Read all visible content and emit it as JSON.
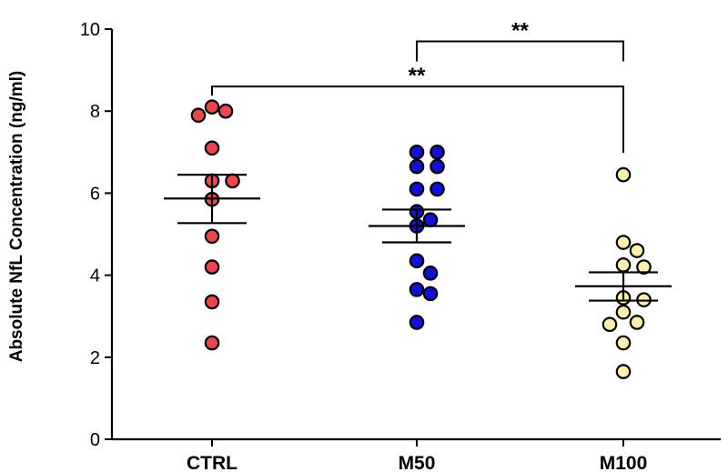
{
  "chart_data": {
    "type": "scatter",
    "title": "",
    "xlabel": "",
    "ylabel": "Absolute NfL Concentration (ng/ml)",
    "ylim": [
      0,
      10
    ],
    "yticks": [
      0,
      2,
      4,
      6,
      8,
      10
    ],
    "categories": [
      "CTRL",
      "M50",
      "M100"
    ],
    "series": [
      {
        "name": "CTRL",
        "color": "#e8474b",
        "values": [
          8.1,
          8.0,
          7.9,
          7.1,
          6.3,
          6.3,
          5.85,
          4.95,
          4.2,
          3.35,
          2.35
        ],
        "mean": 5.87,
        "sem_low": 5.27,
        "sem_high": 6.45
      },
      {
        "name": "M50",
        "color": "#1010d6",
        "values": [
          7.0,
          7.0,
          6.65,
          6.65,
          6.1,
          6.1,
          5.55,
          5.35,
          5.2,
          4.35,
          4.05,
          3.65,
          3.55,
          2.85
        ],
        "mean": 5.2,
        "sem_low": 4.8,
        "sem_high": 5.6
      },
      {
        "name": "M100",
        "color": "#fbf0b0",
        "values": [
          6.45,
          4.8,
          4.6,
          4.25,
          4.2,
          3.45,
          3.4,
          3.1,
          2.85,
          2.8,
          2.35,
          1.65
        ],
        "mean": 3.73,
        "sem_low": 3.38,
        "sem_high": 4.07
      }
    ],
    "annotations": [
      {
        "type": "significance",
        "from": "M50",
        "to": "M100",
        "label": "**",
        "y": 9.7
      },
      {
        "type": "significance",
        "from": "CTRL",
        "to": "M100",
        "label": "**",
        "y": 8.6
      }
    ]
  }
}
